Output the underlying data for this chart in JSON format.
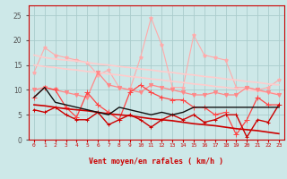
{
  "x": [
    0,
    1,
    2,
    3,
    4,
    5,
    6,
    7,
    8,
    9,
    10,
    11,
    12,
    13,
    14,
    15,
    16,
    17,
    18,
    19,
    20,
    21,
    22,
    23
  ],
  "background_color": "#cde8e8",
  "grid_color": "#aacccc",
  "xlabel": "Vent moyen/en rafales ( km/h )",
  "xlabel_color": "#cc0000",
  "ylim": [
    0,
    27
  ],
  "yticks": [
    0,
    5,
    10,
    15,
    20,
    25
  ],
  "series": [
    {
      "label": "rafales_pink_star",
      "color": "#ffaaaa",
      "linewidth": 0.8,
      "marker": "*",
      "markersize": 3,
      "values": [
        13.5,
        18.5,
        17.0,
        16.5,
        16.0,
        15.5,
        13.0,
        14.0,
        10.5,
        10.0,
        16.5,
        24.5,
        19.0,
        10.5,
        10.5,
        21.0,
        17.0,
        16.5,
        16.0,
        10.5,
        10.5,
        10.0,
        10.5,
        12.0
      ]
    },
    {
      "label": "trend_upper_light",
      "color": "#ffcccc",
      "linewidth": 1.2,
      "marker": "None",
      "markersize": 0,
      "values": [
        17.0,
        16.5,
        16.2,
        16.0,
        15.8,
        15.5,
        15.2,
        15.0,
        14.7,
        14.5,
        14.2,
        14.0,
        13.7,
        13.5,
        13.2,
        13.0,
        12.7,
        12.5,
        12.2,
        12.0,
        11.7,
        11.5,
        11.2,
        11.0
      ]
    },
    {
      "label": "trend_lower_light",
      "color": "#ffcccc",
      "linewidth": 1.2,
      "marker": "None",
      "markersize": 0,
      "values": [
        15.0,
        14.7,
        14.5,
        14.2,
        14.0,
        13.7,
        13.5,
        13.2,
        13.0,
        12.7,
        12.5,
        12.2,
        12.0,
        11.7,
        11.5,
        11.2,
        11.0,
        10.7,
        10.5,
        10.2,
        10.0,
        9.8,
        9.5,
        9.2
      ]
    },
    {
      "label": "rafales_medium",
      "color": "#ff8888",
      "linewidth": 0.9,
      "marker": "v",
      "markersize": 3,
      "values": [
        10.0,
        10.5,
        10.0,
        9.5,
        9.0,
        8.5,
        13.5,
        11.0,
        10.5,
        10.0,
        9.5,
        11.0,
        10.5,
        10.0,
        9.5,
        9.0,
        9.0,
        9.5,
        9.0,
        9.0,
        10.5,
        10.0,
        9.5,
        9.0
      ]
    },
    {
      "label": "vent_red_cross",
      "color": "#ff4444",
      "linewidth": 0.9,
      "marker": "+",
      "markersize": 4,
      "values": [
        8.5,
        10.5,
        10.0,
        6.5,
        4.5,
        9.5,
        7.0,
        5.5,
        4.0,
        9.5,
        11.0,
        9.5,
        8.5,
        8.0,
        8.0,
        6.5,
        6.5,
        5.0,
        5.5,
        1.0,
        4.0,
        8.5,
        7.0,
        7.0
      ]
    },
    {
      "label": "vent_dark_red",
      "color": "#cc0000",
      "linewidth": 1.0,
      "marker": "+",
      "markersize": 3,
      "values": [
        6.0,
        5.5,
        6.5,
        5.0,
        4.0,
        4.0,
        5.5,
        3.0,
        4.0,
        5.0,
        4.0,
        2.5,
        4.0,
        5.0,
        4.0,
        5.0,
        3.5,
        4.0,
        5.0,
        5.0,
        0.5,
        4.0,
        3.5,
        7.0
      ]
    },
    {
      "label": "trend_red_solid",
      "color": "#cc0000",
      "linewidth": 1.2,
      "marker": "None",
      "markersize": 0,
      "values": [
        7.0,
        6.8,
        6.5,
        6.2,
        6.0,
        5.8,
        5.5,
        5.2,
        5.0,
        4.8,
        4.5,
        4.2,
        4.0,
        3.8,
        3.5,
        3.2,
        3.0,
        2.8,
        2.5,
        2.2,
        2.0,
        1.8,
        1.5,
        1.2
      ]
    },
    {
      "label": "vent_black",
      "color": "#111111",
      "linewidth": 1.0,
      "marker": "None",
      "markersize": 0,
      "values": [
        8.5,
        10.5,
        7.5,
        7.0,
        6.5,
        6.0,
        5.5,
        5.0,
        6.5,
        6.0,
        5.5,
        5.0,
        5.5,
        5.0,
        5.5,
        6.5,
        6.5,
        6.5,
        6.5,
        6.5,
        6.5,
        6.5,
        6.5,
        6.5
      ]
    }
  ]
}
